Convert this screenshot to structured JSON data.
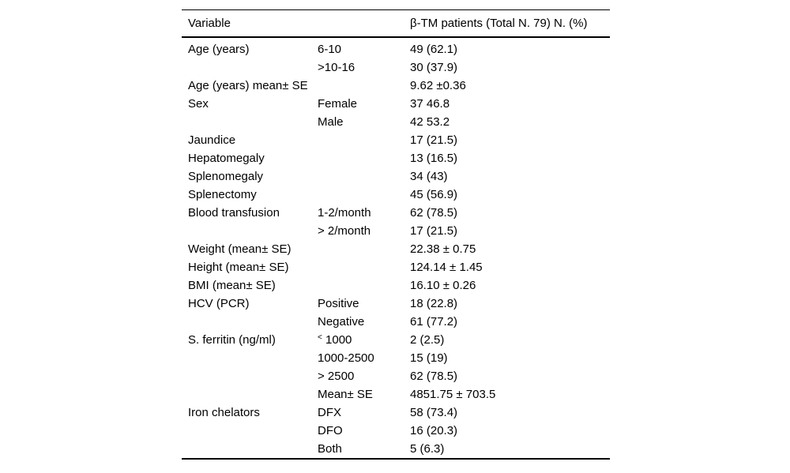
{
  "table": {
    "headers": [
      "Variable",
      "",
      "β-TM patients (Total N. 79) N. (%)"
    ],
    "rows": [
      {
        "variable": "Age (years)",
        "category": "6-10",
        "value": "49 (62.1)"
      },
      {
        "variable": "",
        "category": ">10-16",
        "value": "30 (37.9)"
      },
      {
        "variable": "Age (years) mean± SE",
        "category": "",
        "value": "9.62 ±0.36"
      },
      {
        "variable": "Sex",
        "category": "Female",
        "value": "37 46.8"
      },
      {
        "variable": "",
        "category": "Male",
        "value": "42 53.2"
      },
      {
        "variable": "Jaundice",
        "category": "",
        "value": "17 (21.5)"
      },
      {
        "variable": "Hepatomegaly",
        "category": "",
        "value": "13 (16.5)"
      },
      {
        "variable": "Splenomegaly",
        "category": "",
        "value": "34 (43)"
      },
      {
        "variable": "Splenectomy",
        "category": "",
        "value": "45 (56.9)"
      },
      {
        "variable": "Blood transfusion",
        "category": "1-2/month",
        "value": "62 (78.5)"
      },
      {
        "variable": "",
        "category": "> 2/month",
        "value": "17 (21.5)"
      },
      {
        "variable": "Weight (mean± SE)",
        "category": "",
        "value": "22.38 ± 0.75"
      },
      {
        "variable": "Height (mean± SE)",
        "category": "",
        "value": "124.14 ± 1.45"
      },
      {
        "variable": "BMI (mean± SE)",
        "category": "",
        "value": "16.10 ± 0.26"
      },
      {
        "variable": "HCV (PCR)",
        "category": "Positive",
        "value": "18 (22.8)"
      },
      {
        "variable": "",
        "category": "Negative",
        "value": "61 (77.2)"
      },
      {
        "variable": "S. ferritin (ng/ml)",
        "category_sup": "<",
        "category": " 1000",
        "value": "2 (2.5)"
      },
      {
        "variable": "",
        "category": "1000-2500",
        "value": "15 (19)"
      },
      {
        "variable": "",
        "category": "> 2500",
        "value": "62 (78.5)"
      },
      {
        "variable": "",
        "category": "Mean± SE",
        "value": "4851.75 ± 703.5"
      },
      {
        "variable": "Iron chelators",
        "category": "DFX",
        "value": "58 (73.4)"
      },
      {
        "variable": "",
        "category": "DFO",
        "value": "16 (20.3)"
      },
      {
        "variable": "",
        "category": "Both",
        "value": "5 (6.3)"
      }
    ]
  }
}
